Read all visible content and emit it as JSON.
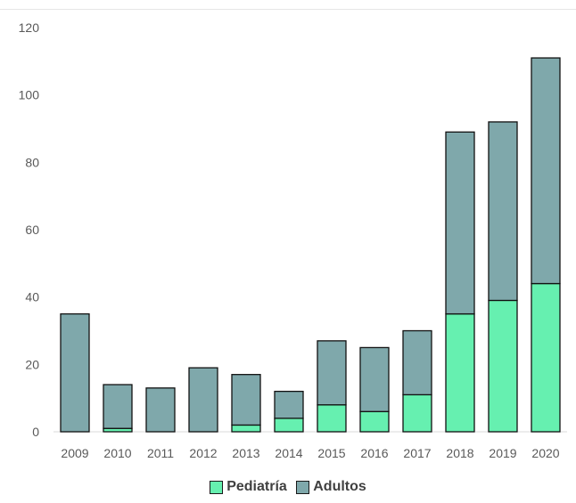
{
  "chart_data": {
    "type": "bar",
    "stacked": true,
    "categories": [
      "2009",
      "2010",
      "2011",
      "2012",
      "2013",
      "2014",
      "2015",
      "2016",
      "2017",
      "2018",
      "2019",
      "2020"
    ],
    "series": [
      {
        "name": "Pediatría",
        "color": "#66f0b0",
        "values": [
          0,
          1,
          0,
          0,
          2,
          4,
          8,
          6,
          11,
          35,
          39,
          44
        ]
      },
      {
        "name": "Adultos",
        "color": "#7fa8ab",
        "values": [
          35,
          13,
          13,
          19,
          15,
          8,
          19,
          19,
          19,
          54,
          53,
          67
        ]
      }
    ],
    "yticks": [
      0,
      20,
      40,
      60,
      80,
      100,
      120
    ],
    "ylim": [
      0,
      120
    ],
    "grid": false,
    "legend_position": "bottom",
    "title": "",
    "xlabel": "",
    "ylabel": ""
  }
}
